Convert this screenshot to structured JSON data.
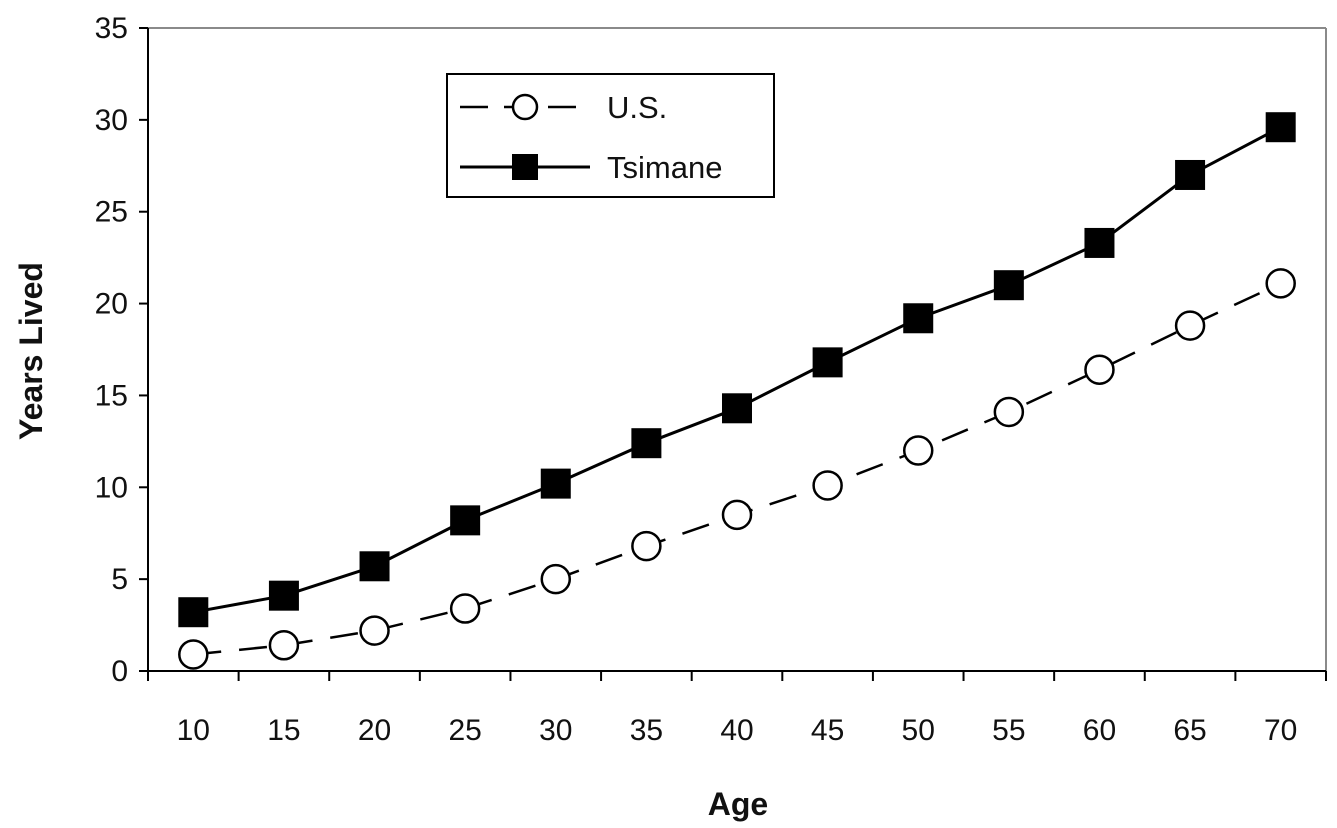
{
  "chart_data": {
    "type": "line",
    "title": "",
    "xlabel": "Age",
    "ylabel": "Years Lived",
    "categories": [
      "10",
      "15",
      "20",
      "25",
      "30",
      "35",
      "40",
      "45",
      "50",
      "55",
      "60",
      "65",
      "70"
    ],
    "ylim": [
      0,
      35
    ],
    "yticks": [
      "0",
      "5",
      "10",
      "15",
      "20",
      "25",
      "30",
      "35"
    ],
    "grid": false,
    "legend_position": "top-center",
    "series": [
      {
        "name": "U.S.",
        "line_style": "dashed",
        "marker": "open-circle",
        "color": "#000000",
        "values": [
          0.9,
          1.4,
          2.2,
          3.4,
          5.0,
          6.8,
          8.5,
          10.1,
          12.0,
          14.1,
          16.4,
          18.8,
          21.1
        ]
      },
      {
        "name": "Tsimane",
        "line_style": "solid",
        "marker": "filled-square",
        "color": "#000000",
        "values": [
          3.2,
          4.1,
          5.7,
          8.2,
          10.2,
          12.4,
          14.3,
          16.8,
          19.2,
          21.0,
          23.3,
          27.0,
          29.6
        ]
      }
    ]
  }
}
